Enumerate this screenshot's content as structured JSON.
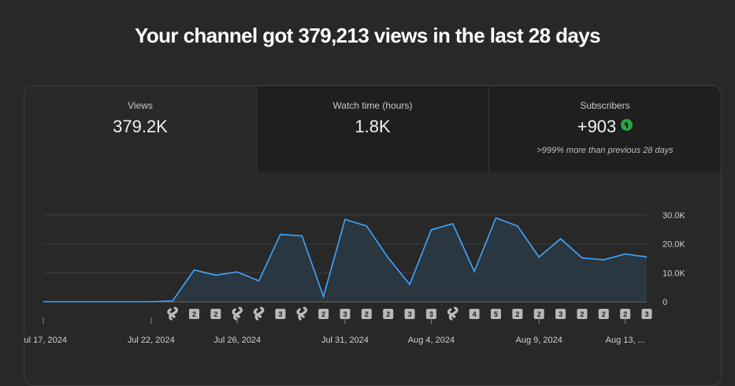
{
  "headline": "Your channel got 379,213 views in the last 28 days",
  "tabs": [
    {
      "label": "Views",
      "value": "379.2K",
      "note": "",
      "active": true
    },
    {
      "label": "Watch time (hours)",
      "value": "1.8K",
      "note": "",
      "active": false
    },
    {
      "label": "Subscribers",
      "value": "+903",
      "note": ">999% more than previous 28 days",
      "active": false,
      "trend_icon": "arrow-up-icon"
    }
  ],
  "colors": {
    "line": "#3ea6ff",
    "fill": "#2b3a44",
    "grid": "#3c3c3c",
    "trend_up": "#2ba640"
  },
  "chart_data": {
    "type": "area",
    "x_labels": [
      "Jul 17, 2024",
      "Jul 22, 2024",
      "Jul 26, 2024",
      "Jul 31, 2024",
      "Aug 4, 2024",
      "Aug 9, 2024",
      "Aug 13, ..."
    ],
    "x_label_day_index": [
      0,
      5,
      9,
      14,
      18,
      23,
      27
    ],
    "y_ticks": [
      "0",
      "10.0K",
      "20.0K",
      "30.0K"
    ],
    "y_tick_values": [
      0,
      10000,
      20000,
      30000
    ],
    "ylim": [
      0,
      30000
    ],
    "values": [
      0,
      0,
      0,
      0,
      0,
      0,
      300,
      11000,
      9200,
      10300,
      7200,
      23300,
      22800,
      1800,
      28500,
      26200,
      15200,
      6000,
      24900,
      27000,
      10500,
      29000,
      26200,
      15500,
      21800,
      15200,
      14500,
      16500,
      15500
    ],
    "markers": [
      {
        "day": 6,
        "kind": "shorts",
        "icon": "shorts-icon"
      },
      {
        "day": 7,
        "kind": "count",
        "text": "2"
      },
      {
        "day": 8,
        "kind": "count",
        "text": "2"
      },
      {
        "day": 9,
        "kind": "shorts",
        "icon": "shorts-icon"
      },
      {
        "day": 10,
        "kind": "shorts",
        "icon": "shorts-icon"
      },
      {
        "day": 11,
        "kind": "count",
        "text": "3"
      },
      {
        "day": 12,
        "kind": "shorts",
        "icon": "shorts-icon"
      },
      {
        "day": 13,
        "kind": "count",
        "text": "2"
      },
      {
        "day": 14,
        "kind": "count",
        "text": "3"
      },
      {
        "day": 15,
        "kind": "count",
        "text": "2"
      },
      {
        "day": 16,
        "kind": "count",
        "text": "2"
      },
      {
        "day": 17,
        "kind": "count",
        "text": "3"
      },
      {
        "day": 18,
        "kind": "count",
        "text": "3"
      },
      {
        "day": 19,
        "kind": "shorts",
        "icon": "shorts-icon"
      },
      {
        "day": 20,
        "kind": "count",
        "text": "4"
      },
      {
        "day": 21,
        "kind": "count",
        "text": "5"
      },
      {
        "day": 22,
        "kind": "count",
        "text": "2"
      },
      {
        "day": 23,
        "kind": "count",
        "text": "2"
      },
      {
        "day": 24,
        "kind": "count",
        "text": "3"
      },
      {
        "day": 25,
        "kind": "count",
        "text": "2"
      },
      {
        "day": 26,
        "kind": "count",
        "text": "2"
      },
      {
        "day": 27,
        "kind": "count",
        "text": "2"
      },
      {
        "day": 28,
        "kind": "count",
        "text": "3"
      }
    ]
  }
}
